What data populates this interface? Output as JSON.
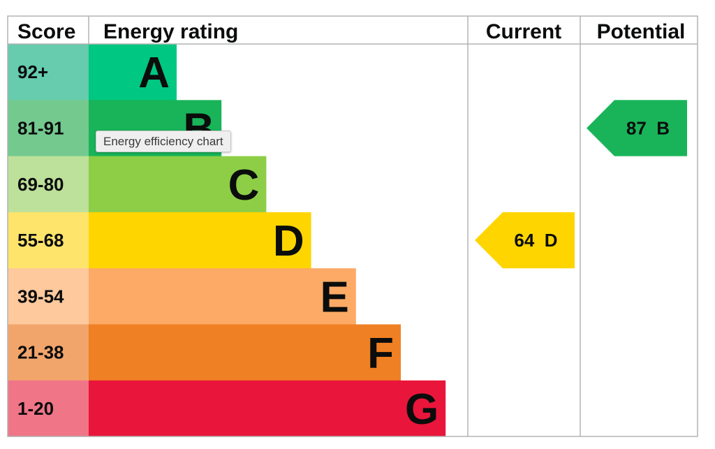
{
  "chart_data": {
    "type": "table",
    "headers": {
      "score": "Score",
      "rating": "Energy rating",
      "current": "Current",
      "potential": "Potential"
    },
    "bands": [
      {
        "letter": "A",
        "score": "92+",
        "color": "#00c781",
        "score_bg": "#66ccad"
      },
      {
        "letter": "B",
        "score": "81-91",
        "color": "#19b459",
        "score_bg": "#74c98f"
      },
      {
        "letter": "C",
        "score": "69-80",
        "color": "#8dce46",
        "score_bg": "#bde09a"
      },
      {
        "letter": "D",
        "score": "55-68",
        "color": "#ffd500",
        "score_bg": "#ffe46b"
      },
      {
        "letter": "E",
        "score": "39-54",
        "color": "#fcaa65",
        "score_bg": "#fdc99d"
      },
      {
        "letter": "F",
        "score": "21-38",
        "color": "#ef8023",
        "score_bg": "#f2a56b"
      },
      {
        "letter": "G",
        "score": "1-20",
        "color": "#e9153b",
        "score_bg": "#f07587"
      }
    ],
    "current": {
      "value": 64,
      "band": "D",
      "label": "64  D",
      "color": "#ffd500"
    },
    "potential": {
      "value": 87,
      "band": "B",
      "label": "87  B",
      "color": "#19b459"
    }
  },
  "tooltip": {
    "text": "Energy efficiency chart"
  }
}
